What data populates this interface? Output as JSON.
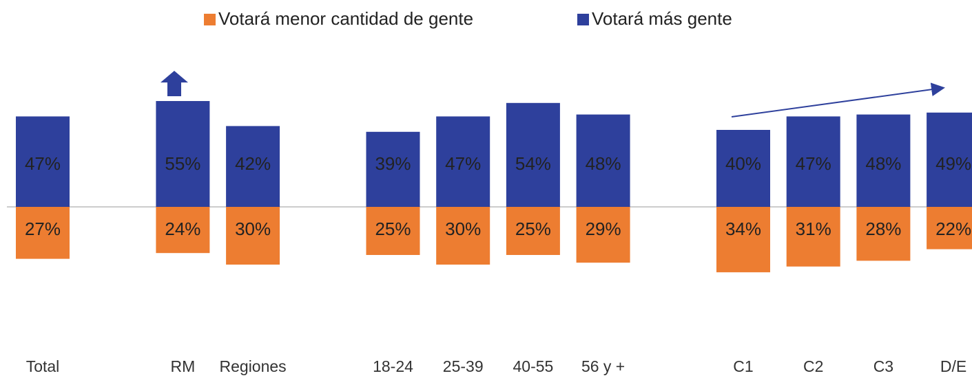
{
  "chart_data": {
    "type": "diverging_bar",
    "categories": [
      "Total",
      null,
      "RM",
      "Regiones",
      null,
      "18-24",
      "25-39",
      "40-55",
      "56 y +",
      null,
      "C1",
      "C2",
      "C3",
      "D/E"
    ],
    "series": [
      {
        "name": "Votará menor cantidad de gente",
        "color": "#ED7D31",
        "values": [
          27,
          null,
          24,
          30,
          null,
          25,
          30,
          25,
          29,
          null,
          34,
          31,
          28,
          22
        ],
        "value_labels": [
          "27%",
          null,
          "24%",
          "30%",
          null,
          "25%",
          "30%",
          "25%",
          "29%",
          null,
          "34%",
          "31%",
          "28%",
          "22%"
        ]
      },
      {
        "name": "Votará más gente",
        "color": "#2E409C",
        "values": [
          47,
          null,
          55,
          42,
          null,
          39,
          47,
          54,
          48,
          null,
          40,
          47,
          48,
          49
        ],
        "value_labels": [
          "47%",
          null,
          "55%",
          "42%",
          null,
          "39%",
          "47%",
          "54%",
          "48%",
          null,
          "40%",
          "47%",
          "48%",
          "49%"
        ]
      }
    ]
  }
}
